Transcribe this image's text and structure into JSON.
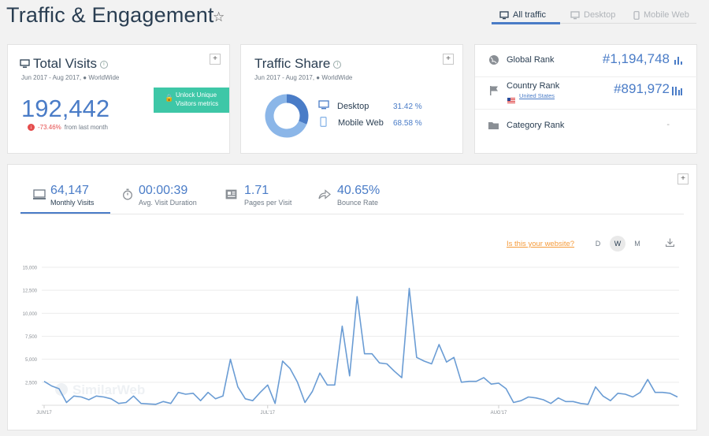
{
  "header": {
    "title": "Traffic & Engagement",
    "tabs": [
      {
        "label": "All traffic",
        "icon": "desktop-icon",
        "active": true
      },
      {
        "label": "Desktop",
        "icon": "desktop-icon",
        "active": false
      },
      {
        "label": "Mobile Web",
        "icon": "mobile-icon",
        "active": false
      }
    ]
  },
  "total_visits": {
    "title": "Total Visits",
    "subtitle": "Jun 2017 - Aug 2017,",
    "region": "WorldWide",
    "value": "192,442",
    "change": "-73.46%",
    "change_suffix": "from last month",
    "unlock_line1": "Unlock Unique",
    "unlock_line2": "Visitors metrics"
  },
  "traffic_share": {
    "title": "Traffic Share",
    "subtitle": "Jun 2017 - Aug 2017,",
    "region": "WorldWide",
    "items": [
      {
        "label": "Desktop",
        "pct": "31.42 %",
        "value": 31.42,
        "color": "#4a7cc7"
      },
      {
        "label": "Mobile Web",
        "pct": "68.58 %",
        "value": 68.58,
        "color": "#8bb6e8"
      }
    ]
  },
  "ranks": {
    "global_label": "Global Rank",
    "global_value": "#1,194,748",
    "country_label": "Country Rank",
    "country_name": "United States",
    "country_value": "#891,972",
    "category_label": "Category Rank",
    "category_value": "-"
  },
  "metrics": [
    {
      "value": "64,147",
      "label": "Monthly Visits",
      "active": true
    },
    {
      "value": "00:00:39",
      "label": "Avg. Visit Duration",
      "active": false
    },
    {
      "value": "1.71",
      "label": "Pages per Visit",
      "active": false
    },
    {
      "value": "40.65%",
      "label": "Bounce Rate",
      "active": false
    }
  ],
  "chart_controls": {
    "your_site": "Is this your website?",
    "d": "D",
    "w": "W",
    "m": "M"
  },
  "watermark": "SimilarWeb",
  "colors": {
    "accent": "#4a7cc7",
    "teal": "#3ec7a7",
    "orange": "#f59b3b",
    "red": "#e54d4d"
  },
  "chart_data": {
    "type": "line",
    "title": "",
    "xlabel": "",
    "ylabel": "",
    "ylim": [
      0,
      15000
    ],
    "yticks": [
      "15,000",
      "12,500",
      "10,000",
      "7,500",
      "5,000",
      "2,500"
    ],
    "xticks": [
      {
        "label": "JUN'17",
        "index": 0
      },
      {
        "label": "JUL'17",
        "index": 30
      },
      {
        "label": "AUG'17",
        "index": 61
      }
    ],
    "grid": true,
    "series": [
      {
        "name": "",
        "color": "#6a9cd4",
        "values": [
          2600,
          2100,
          1800,
          300,
          1000,
          900,
          600,
          1000,
          900,
          700,
          200,
          300,
          1000,
          200,
          150,
          100,
          400,
          200,
          1400,
          1200,
          1300,
          500,
          1400,
          700,
          1000,
          5000,
          2000,
          700,
          500,
          1400,
          2200,
          200,
          4800,
          4000,
          2500,
          300,
          1500,
          3500,
          2200,
          2200,
          8600,
          3200,
          11800,
          5600,
          5600,
          4600,
          4500,
          3700,
          3000,
          12700,
          5200,
          4800,
          4500,
          6600,
          4700,
          5200,
          2500,
          2600,
          2600,
          3000,
          2300,
          2400,
          1800,
          300,
          500,
          900,
          800,
          600,
          200,
          800,
          400,
          400,
          200,
          100,
          2000,
          1000,
          500,
          1300,
          1200,
          900,
          1400,
          2800,
          1400,
          1400,
          1300,
          900
        ]
      }
    ]
  }
}
